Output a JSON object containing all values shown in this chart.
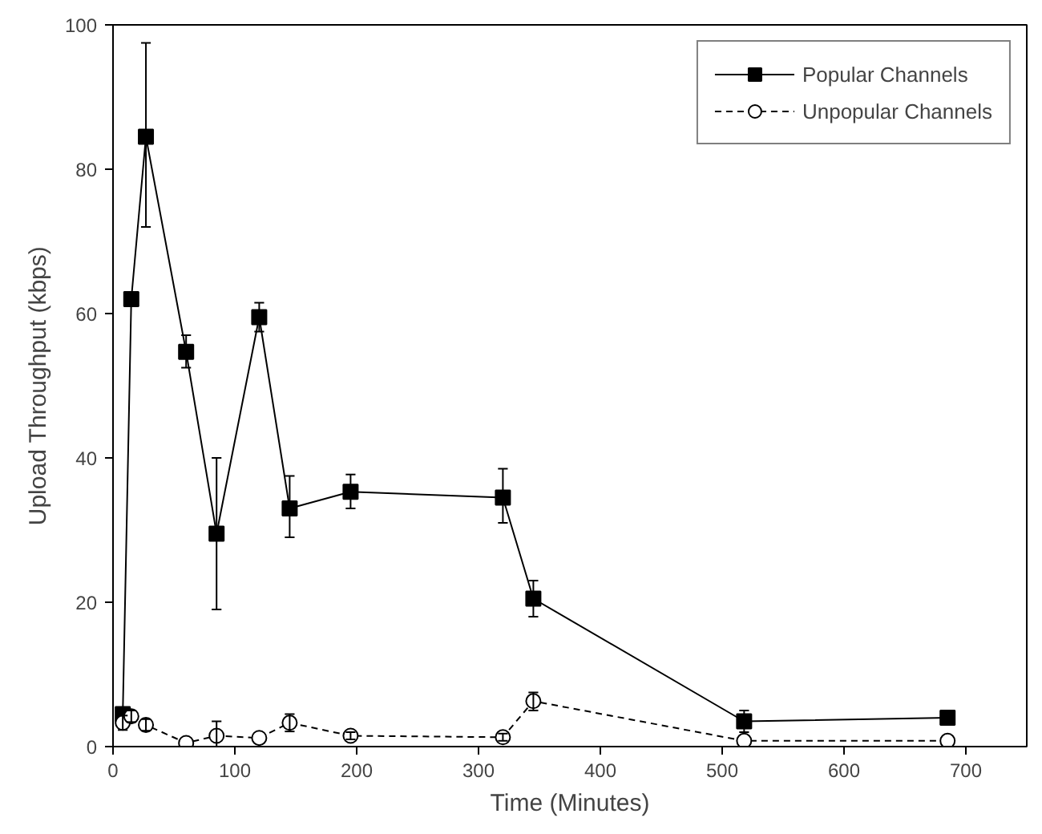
{
  "chart_data": {
    "type": "line",
    "xlabel": "Time (Minutes)",
    "ylabel": "Upload Throughput (kbps)",
    "xlim": [
      0,
      750
    ],
    "xticks": [
      0,
      100,
      200,
      300,
      400,
      500,
      600,
      700
    ],
    "ylim": [
      0,
      100
    ],
    "yticks": [
      0,
      20,
      40,
      60,
      80,
      100
    ],
    "grid": false,
    "legend": "top right",
    "x": [
      8,
      15,
      27,
      60,
      85,
      120,
      145,
      195,
      320,
      345,
      518,
      685
    ],
    "series": [
      {
        "name": "Popular Channels",
        "color": "#000000",
        "marker": "square",
        "line_style": "solid",
        "values": [
          4.5,
          62,
          84.5,
          54.7,
          29.5,
          59.5,
          33,
          35.3,
          34.5,
          20.5,
          3.5,
          4
        ],
        "errors": [
          0.5,
          null,
          [
            72,
            97.5
          ],
          [
            52.5,
            57
          ],
          [
            19,
            40
          ],
          [
            57.5,
            61.5
          ],
          [
            29,
            37.5
          ],
          [
            33,
            37.7
          ],
          [
            31,
            38.5
          ],
          [
            18,
            23
          ],
          [
            2,
            5
          ],
          null
        ]
      },
      {
        "name": "Unpopular Channels",
        "color": "#000000",
        "marker": "circle",
        "line_style": "dashed",
        "values": [
          3.3,
          4.2,
          3,
          0.5,
          1.5,
          1.2,
          3.3,
          1.5,
          1.3,
          6.3,
          0.8,
          0.8
        ],
        "errors": [
          1,
          0.8,
          0.8,
          null,
          [
            0,
            3.5
          ],
          null,
          1.2,
          0.5,
          0.5,
          [
            5,
            7.5
          ],
          null,
          null
        ]
      }
    ]
  }
}
